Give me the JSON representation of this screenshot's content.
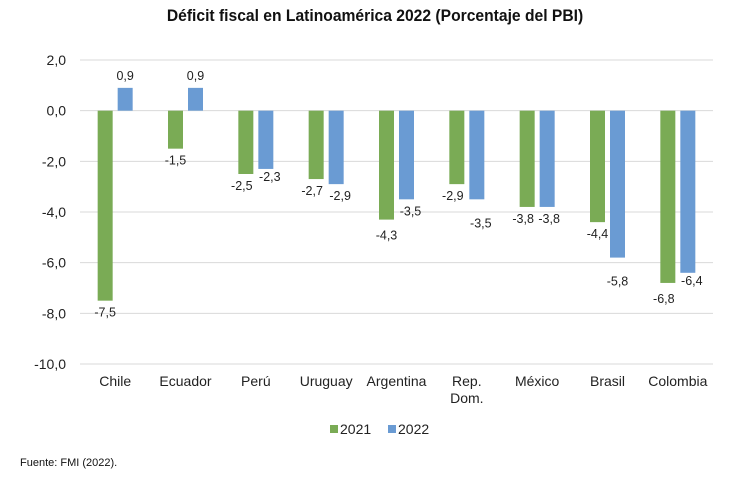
{
  "chart_data": {
    "type": "bar",
    "title": "Déficit fiscal en Latinoamérica 2022 (Porcentaje del PBI)",
    "xlabel": "",
    "ylabel": "",
    "categories": [
      "Chile",
      "Ecuador",
      "Perú",
      "Uruguay",
      "Argentina",
      "Rep. Dom.",
      "México",
      "Brasil",
      "Colombia"
    ],
    "series": [
      {
        "name": "2021",
        "color": "#7aab55",
        "values": [
          -7.5,
          -1.5,
          -2.5,
          -2.7,
          -4.3,
          -2.9,
          -3.8,
          -4.4,
          -6.8
        ]
      },
      {
        "name": "2022",
        "color": "#6a9bd3",
        "values": [
          0.9,
          0.9,
          -2.3,
          -2.9,
          -3.5,
          -3.5,
          -3.8,
          -5.8,
          -6.4
        ]
      }
    ],
    "ylim": [
      -10,
      2
    ],
    "yticks": [
      2,
      0,
      -2,
      -4,
      -6,
      -8,
      -10
    ],
    "ytick_labels": [
      "2,0",
      "0,0",
      "-2,0",
      "-4,0",
      "-6,0",
      "-8,0",
      "-10,0"
    ],
    "data_labels": [
      [
        "-7,5",
        "-1,5",
        "-2,5",
        "-2,7",
        "-4,3",
        "-2,9",
        "-3,8",
        "-4,4",
        "-6,8"
      ],
      [
        "0,9",
        "0,9",
        "-2,3",
        "-2,9",
        "-3,5",
        "-3,5",
        "-3,8",
        "-5,8",
        "-6,4"
      ]
    ],
    "grid": true,
    "legend": "bottom"
  },
  "footer": "Fuente: FMI (2022)."
}
